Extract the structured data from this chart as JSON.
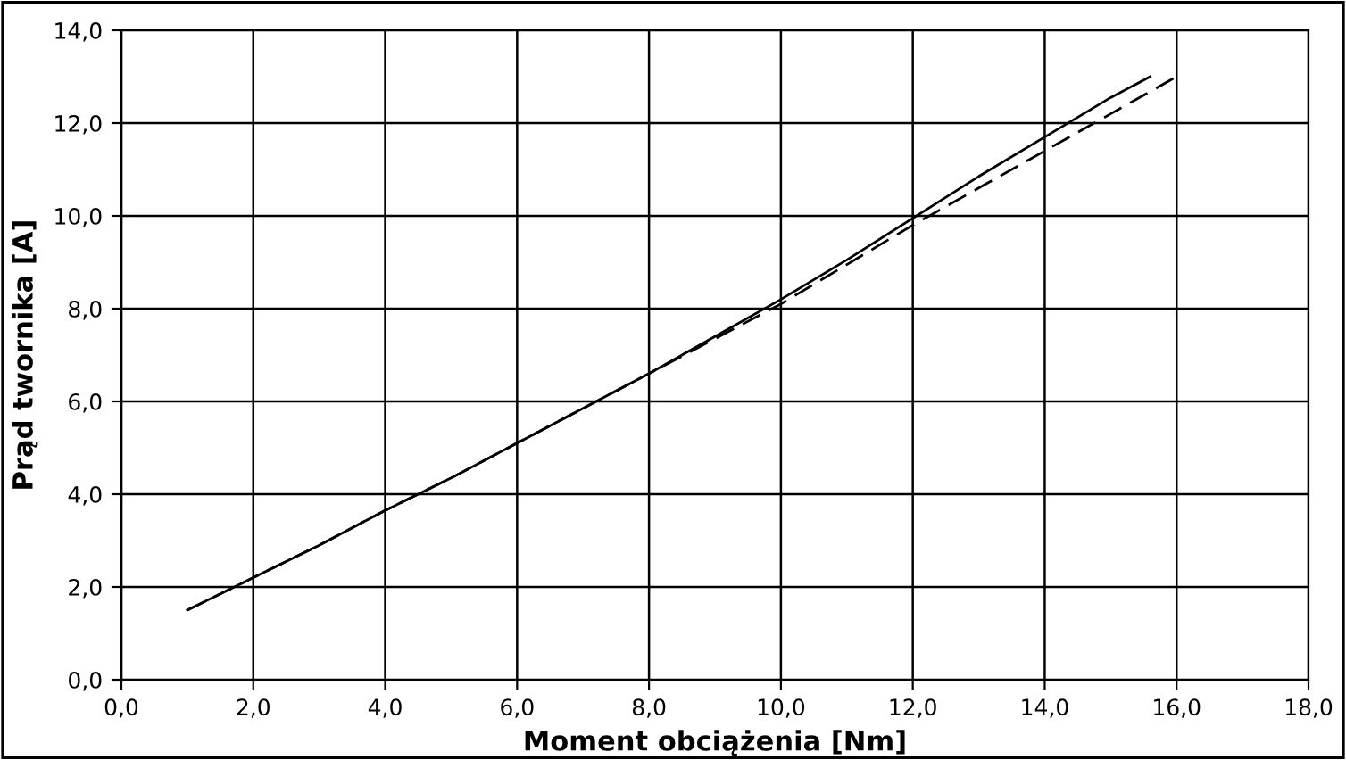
{
  "chart_data": {
    "type": "line",
    "xlabel": "Moment obciążenia [Nm]",
    "ylabel": "Prąd twornika [A]",
    "series": [
      {
        "color": "#000000",
        "line_style": "solid",
        "x": [
          1,
          2,
          3,
          4,
          5,
          6,
          7,
          8,
          9,
          10,
          11,
          12,
          13,
          14,
          15,
          15.6
        ],
        "values": [
          1.5,
          2.2,
          2.9,
          3.65,
          4.35,
          5.1,
          5.85,
          6.6,
          7.4,
          8.2,
          9.05,
          9.95,
          10.85,
          11.7,
          12.55,
          13.0
        ]
      },
      {
        "color": "#000000",
        "line_style": "dashed",
        "x": [
          1,
          2,
          3,
          4,
          5,
          6,
          7,
          8,
          9,
          10,
          11,
          12,
          13,
          14,
          15,
          16
        ],
        "values": [
          1.5,
          2.2,
          2.9,
          3.65,
          4.35,
          5.1,
          5.85,
          6.6,
          7.35,
          8.1,
          8.95,
          9.8,
          10.6,
          11.4,
          12.2,
          13.0
        ]
      }
    ],
    "xlim": [
      0,
      18
    ],
    "ylim": [
      0,
      14
    ],
    "xticks": [
      {
        "value": 0,
        "label": "0,0"
      },
      {
        "value": 2,
        "label": "2,0"
      },
      {
        "value": 4,
        "label": "4,0"
      },
      {
        "value": 6,
        "label": "6,0"
      },
      {
        "value": 8,
        "label": "8,0"
      },
      {
        "value": 10,
        "label": "10,0"
      },
      {
        "value": 12,
        "label": "12,0"
      },
      {
        "value": 14,
        "label": "14,0"
      },
      {
        "value": 16,
        "label": "16,0"
      },
      {
        "value": 18,
        "label": "18,0"
      }
    ],
    "yticks": [
      {
        "value": 0,
        "label": "0,0"
      },
      {
        "value": 2,
        "label": "2,0"
      },
      {
        "value": 4,
        "label": "4,0"
      },
      {
        "value": 6,
        "label": "6,0"
      },
      {
        "value": 8,
        "label": "8,0"
      },
      {
        "value": 10,
        "label": "10,0"
      },
      {
        "value": 12,
        "label": "12,0"
      },
      {
        "value": 14,
        "label": "14,0"
      }
    ],
    "grid": true,
    "marker": "none"
  }
}
